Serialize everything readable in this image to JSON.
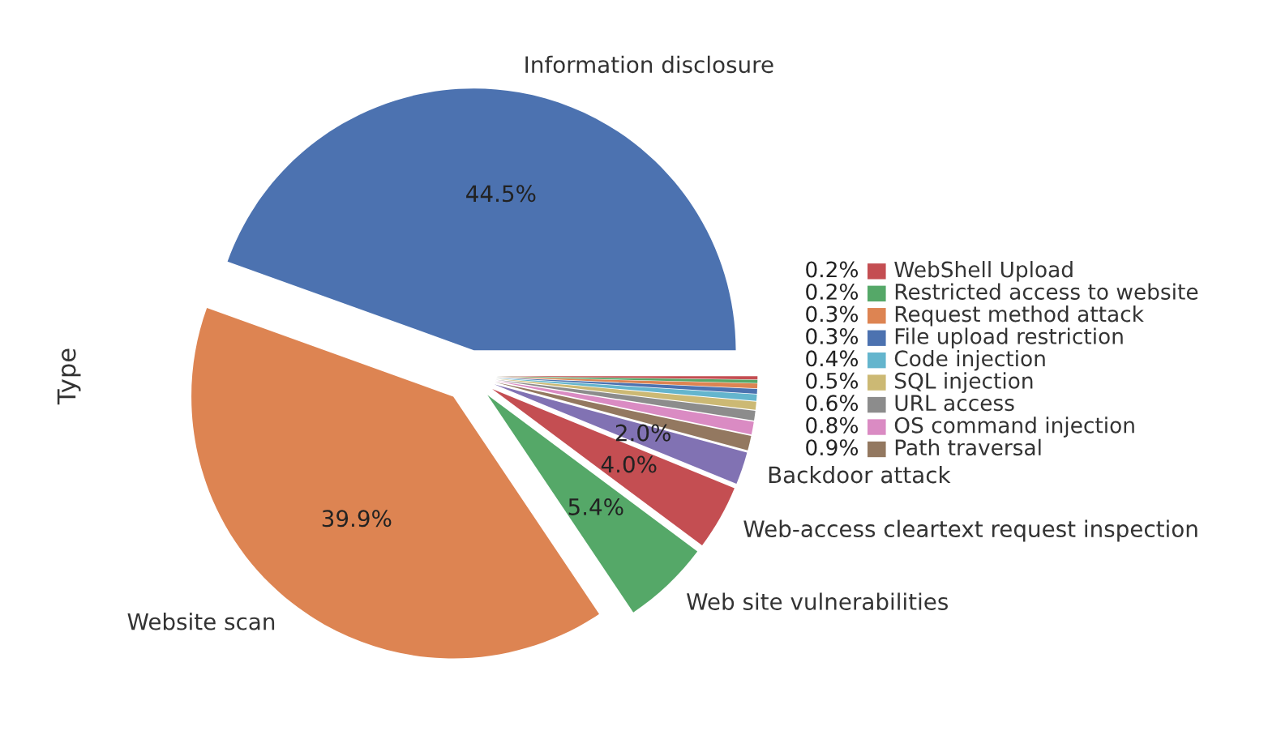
{
  "chart_data": {
    "type": "pie",
    "ylabel": "Type",
    "categories": [
      "Information disclosure",
      "Website scan",
      "Web site vulnerabilities",
      "Web-access cleartext request inspection",
      "Backdoor attack",
      "Path traversal",
      "OS command injection",
      "URL access",
      "SQL injection",
      "Code injection",
      "File upload restriction",
      "Request method attack",
      "Restricted access to website",
      "WebShell Upload"
    ],
    "values": [
      44.5,
      39.9,
      5.4,
      4.0,
      2.0,
      0.9,
      0.8,
      0.6,
      0.5,
      0.4,
      0.3,
      0.3,
      0.2,
      0.2
    ],
    "colors": [
      "#4c72b0",
      "#dd8452",
      "#55a868",
      "#c44e52",
      "#8172b3",
      "#937860",
      "#da8bc3",
      "#8c8c8c",
      "#ccb974",
      "#64b5cd",
      "#4c72b0",
      "#dd8452",
      "#55a868",
      "#c44e52"
    ],
    "legend": "right",
    "value_labels": [
      "44.5%",
      "39.9%",
      "5.4%",
      "4.0%",
      "2.0%",
      "0.9%",
      "0.8%",
      "0.6%",
      "0.5%",
      "0.4%",
      "0.3%",
      "0.3%",
      "0.2%",
      "0.2%"
    ]
  }
}
